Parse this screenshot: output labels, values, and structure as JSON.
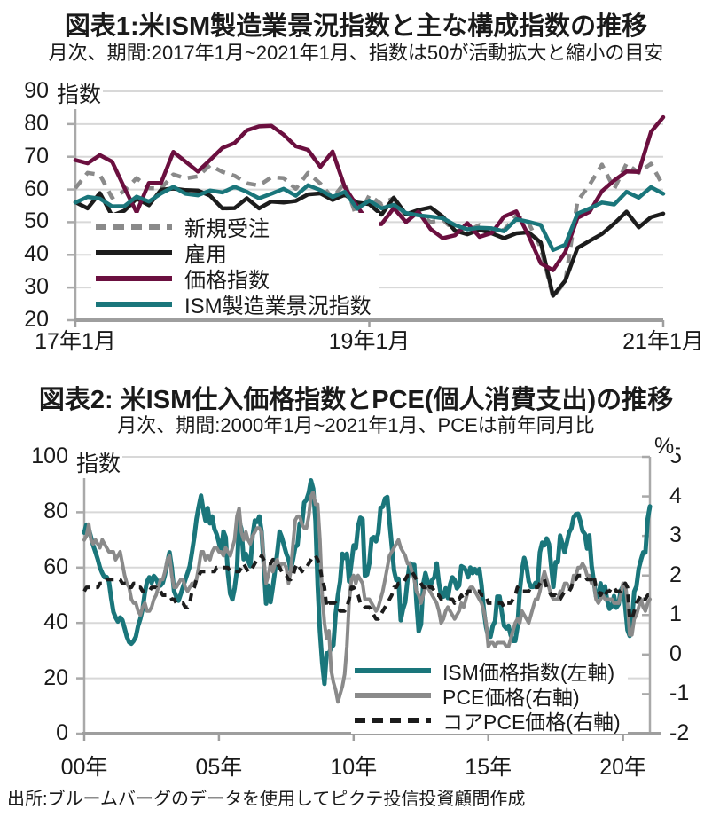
{
  "page": {
    "background": "#ffffff",
    "text_color": "#1a1a1a",
    "grid_color": "#d8d8d8",
    "axis_color": "#a9a9a9"
  },
  "source_note": "出所:ブルームバーグのデータを使用してピクテ投信投資顧問作成",
  "chart_data": [
    {
      "type": "line",
      "title": "図表1:米ISM製造業景況指数と主な構成指数の推移",
      "subtitle": "月次、期間:2017年1月~2021年1月、指数は50が活動拡大と縮小の目安",
      "ylabel": "指数",
      "ylim": [
        20,
        90
      ],
      "y_ticks": [
        90,
        80,
        70,
        60,
        50,
        40,
        30,
        20
      ],
      "x_tick_labels": [
        "17年1月",
        "19年1月",
        "21年1月"
      ],
      "x_tick_positions": [
        0,
        24,
        48
      ],
      "grid": "horizontal",
      "legend_position": "lower-left",
      "series": [
        {
          "name": "新規受注",
          "color": "#8a8a8a",
          "dash": "11 8",
          "width": 4.5,
          "values": [
            60.4,
            65.1,
            64.5,
            57.5,
            59.5,
            63.5,
            60.4,
            60.3,
            64.6,
            63.4,
            64.0,
            67.4,
            65.4,
            64.2,
            61.9,
            61.2,
            63.7,
            63.5,
            60.2,
            65.1,
            61.8,
            57.4,
            62.1,
            51.1,
            58.2,
            55.5,
            57.4,
            51.7,
            52.7,
            50.0,
            50.8,
            47.2,
            47.3,
            49.1,
            47.2,
            47.6,
            52.0,
            49.8,
            42.2,
            27.1,
            31.8,
            56.4,
            61.5,
            67.6,
            60.2,
            67.9,
            65.1,
            67.9,
            61.1
          ]
        },
        {
          "name": "雇用",
          "color": "#1c1c1c",
          "dash": null,
          "width": 4.5,
          "values": [
            56.1,
            54.2,
            58.9,
            52.0,
            53.5,
            57.2,
            55.2,
            59.9,
            60.3,
            59.8,
            59.7,
            58.1,
            54.2,
            54.3,
            57.3,
            54.2,
            56.3,
            56.0,
            56.5,
            58.5,
            58.8,
            56.8,
            58.4,
            56.0,
            55.5,
            52.3,
            57.5,
            52.4,
            53.7,
            54.5,
            51.7,
            47.4,
            46.3,
            47.7,
            46.6,
            45.1,
            46.6,
            46.9,
            43.8,
            27.5,
            32.1,
            42.1,
            44.3,
            46.4,
            49.6,
            53.2,
            48.4,
            51.5,
            52.6
          ]
        },
        {
          "name": "価格指数",
          "color": "#6b0f3f",
          "dash": null,
          "width": 4.5,
          "values": [
            69.0,
            68.0,
            70.5,
            68.5,
            60.5,
            53.0,
            62.0,
            62.0,
            71.5,
            68.5,
            65.5,
            69.0,
            72.7,
            74.2,
            78.1,
            79.3,
            79.5,
            76.8,
            73.2,
            72.1,
            66.9,
            71.6,
            60.7,
            54.9,
            49.6,
            49.4,
            54.3,
            50.0,
            53.2,
            47.9,
            45.1,
            46.0,
            49.7,
            45.5,
            46.7,
            51.7,
            53.3,
            45.9,
            37.4,
            35.3,
            40.8,
            51.3,
            53.2,
            59.5,
            62.8,
            65.5,
            65.4,
            77.6,
            82.1
          ]
        },
        {
          "name": "ISM製造業景況指数",
          "color": "#1a767b",
          "dash": null,
          "width": 4.5,
          "values": [
            56.0,
            57.7,
            57.2,
            54.8,
            54.9,
            57.8,
            56.3,
            58.8,
            60.8,
            58.7,
            58.2,
            59.7,
            59.1,
            60.8,
            59.3,
            57.3,
            58.7,
            60.2,
            58.1,
            61.3,
            59.8,
            57.7,
            59.3,
            54.1,
            56.6,
            54.2,
            55.3,
            52.8,
            52.1,
            51.7,
            51.2,
            49.1,
            47.8,
            48.3,
            48.1,
            47.2,
            50.9,
            50.1,
            49.1,
            41.5,
            43.1,
            52.6,
            54.2,
            56.0,
            55.4,
            59.3,
            57.5,
            60.7,
            58.7
          ]
        }
      ]
    },
    {
      "type": "line",
      "title": "図表2: 米ISM仕入価格指数とPCE(個人消費支出)の推移",
      "subtitle": "月次、期間:2000年1月~2021年1月、PCEは前年同月比",
      "ylabel_left": "指数",
      "ylabel_right": "%",
      "ylim_left": [
        0,
        100
      ],
      "ylim_right": [
        -2,
        5
      ],
      "y_ticks_left": [
        100,
        80,
        60,
        40,
        20,
        0
      ],
      "y_ticks_right": [
        5,
        4,
        3,
        2,
        1,
        0,
        -1,
        -2
      ],
      "x_tick_labels": [
        "00年",
        "05年",
        "10年",
        "15年",
        "20年"
      ],
      "x_tick_positions": [
        0,
        60,
        120,
        180,
        240
      ],
      "grid": "horizontal",
      "legend_position": "lower-right",
      "series": [
        {
          "name": "ISM価格指数(左軸)",
          "axis": "left",
          "color": "#1a767b",
          "dash": null,
          "width": 5,
          "zorder": 3,
          "values": [
            72.6,
            75.5,
            74.0,
            71.0,
            68.0,
            65.5,
            63.0,
            60.0,
            58.0,
            56.5,
            56.6,
            55.0,
            49.0,
            44.0,
            42.0,
            40.5,
            42.0,
            41.0,
            38.0,
            35.0,
            33.0,
            32.5,
            33.5,
            35.0,
            39.0,
            41.5,
            45.0,
            51.0,
            55.0,
            56.5,
            54.5,
            57.0,
            56.0,
            54.0,
            53.5,
            54.5,
            57.5,
            62.0,
            65.5,
            60.0,
            51.5,
            49.5,
            48.0,
            50.5,
            53.0,
            55.5,
            58.0,
            60.5,
            65.5,
            71.0,
            77.5,
            82.0,
            86.0,
            81.0,
            77.0,
            81.5,
            76.0,
            78.5,
            74.0,
            72.0,
            69.0,
            65.5,
            73.0,
            71.0,
            58.0,
            50.5,
            48.5,
            52.5,
            59.0,
            77.0,
            74.0,
            63.0,
            65.0,
            62.5,
            60.5,
            71.5,
            77.0,
            76.5,
            78.5,
            73.0,
            61.0,
            47.0,
            53.5,
            47.5,
            53.0,
            59.0,
            65.5,
            73.0,
            71.0,
            68.0,
            65.0,
            63.0,
            59.0,
            63.0,
            67.5,
            68.0,
            76.0,
            75.5,
            83.5,
            84.5,
            87.0,
            91.5,
            88.5,
            77.0,
            53.5,
            37.0,
            25.5,
            18.0,
            29.0,
            29.0,
            31.0,
            32.0,
            43.5,
            50.0,
            55.0,
            65.0,
            63.5,
            65.0,
            55.0,
            61.5,
            68.0,
            67.0,
            75.0,
            78.0,
            77.5,
            57.0,
            57.5,
            61.5,
            70.5,
            71.0,
            69.5,
            72.5,
            81.5,
            82.0,
            85.0,
            85.5,
            76.5,
            68.0,
            59.0,
            55.5,
            56.0,
            41.0,
            45.0,
            47.5,
            55.5,
            61.5,
            61.0,
            61.0,
            47.5,
            37.0,
            39.5,
            54.0,
            58.0,
            55.0,
            52.5,
            55.5,
            56.5,
            61.5,
            54.5,
            50.0,
            49.5,
            52.5,
            49.0,
            54.0,
            56.5,
            55.5,
            52.5,
            53.5,
            60.5,
            60.0,
            59.0,
            56.5,
            60.0,
            58.0,
            59.5,
            58.0,
            59.5,
            53.5,
            44.5,
            38.5,
            35.0,
            35.0,
            39.0,
            40.5,
            49.5,
            49.5,
            44.0,
            39.0,
            38.0,
            39.0,
            35.5,
            33.5,
            33.5,
            38.5,
            51.5,
            59.0,
            63.5,
            60.5,
            55.0,
            53.0,
            53.0,
            54.5,
            54.5,
            65.5,
            69.0,
            68.0,
            70.5,
            68.5,
            60.5,
            53.0,
            62.0,
            62.0,
            71.5,
            68.5,
            65.5,
            69.0,
            72.7,
            74.2,
            78.1,
            79.3,
            79.5,
            76.8,
            73.2,
            72.1,
            66.9,
            71.6,
            60.7,
            54.9,
            49.6,
            49.4,
            54.3,
            50.0,
            53.2,
            47.9,
            45.1,
            46.0,
            49.7,
            45.5,
            46.7,
            51.7,
            53.3,
            45.9,
            37.4,
            35.3,
            40.8,
            51.3,
            53.2,
            59.5,
            62.8,
            65.5,
            65.4,
            77.6,
            82.1
          ]
        },
        {
          "name": "PCE価格(右軸)",
          "axis": "right",
          "color": "#8a8a8a",
          "dash": null,
          "width": 4,
          "zorder": 1,
          "values": [
            2.9,
            3.0,
            3.3,
            2.9,
            2.8,
            2.9,
            2.8,
            2.7,
            2.9,
            2.8,
            2.7,
            2.6,
            2.6,
            2.6,
            2.4,
            2.5,
            2.6,
            2.3,
            2.0,
            1.8,
            1.7,
            1.4,
            1.3,
            1.3,
            1.1,
            1.0,
            1.2,
            1.3,
            1.1,
            1.1,
            1.2,
            1.4,
            1.5,
            1.7,
            1.9,
            1.9,
            2.1,
            2.4,
            2.5,
            2.0,
            1.7,
            1.7,
            1.8,
            1.9,
            1.9,
            1.7,
            1.6,
            1.7,
            1.8,
            1.8,
            1.9,
            2.2,
            2.6,
            2.6,
            2.4,
            2.5,
            2.4,
            2.6,
            2.7,
            2.7,
            2.6,
            2.6,
            2.5,
            2.7,
            2.6,
            2.5,
            2.7,
            2.9,
            3.5,
            3.7,
            3.1,
            2.9,
            3.1,
            2.9,
            2.8,
            3.0,
            3.1,
            3.2,
            3.2,
            3.1,
            2.4,
            1.8,
            2.0,
            2.3,
            2.1,
            2.3,
            2.4,
            2.2,
            2.3,
            2.3,
            2.2,
            1.8,
            2.1,
            2.8,
            3.4,
            3.5,
            3.5,
            3.3,
            3.2,
            3.2,
            3.5,
            4.0,
            4.1,
            3.8,
            3.8,
            2.9,
            1.5,
            0.8,
            0.4,
            0.6,
            -0.4,
            -0.7,
            -0.9,
            -1.2,
            -1.0,
            -0.8,
            -0.5,
            0.2,
            1.3,
            1.9,
            2.0,
            1.8,
            2.0,
            1.9,
            1.8,
            1.4,
            1.4,
            1.4,
            1.3,
            1.2,
            1.1,
            1.2,
            1.4,
            1.6,
            1.9,
            2.2,
            2.5,
            2.6,
            2.7,
            2.8,
            2.9,
            2.7,
            2.6,
            2.5,
            2.3,
            2.3,
            2.1,
            1.9,
            1.6,
            1.5,
            1.3,
            1.5,
            1.7,
            1.7,
            1.6,
            1.5,
            1.4,
            1.3,
            1.1,
            0.8,
            0.9,
            1.1,
            1.2,
            1.1,
            1.0,
            0.9,
            1.0,
            1.1,
            1.3,
            1.2,
            1.4,
            1.6,
            1.7,
            1.7,
            1.6,
            1.5,
            1.4,
            1.3,
            1.1,
            0.8,
            0.2,
            0.3,
            0.3,
            0.2,
            0.3,
            0.3,
            0.3,
            0.3,
            0.2,
            0.2,
            0.4,
            0.6,
            0.8,
            0.9,
            0.8,
            1.1,
            1.0,
            0.9,
            0.8,
            1.0,
            1.2,
            1.4,
            1.4,
            1.6,
            1.9,
            2.1,
            1.9,
            1.7,
            1.5,
            1.4,
            1.4,
            1.4,
            1.6,
            1.6,
            1.8,
            1.8,
            1.7,
            1.7,
            2.0,
            2.0,
            2.2,
            2.2,
            2.3,
            2.2,
            2.0,
            2.0,
            1.8,
            1.8,
            1.4,
            1.3,
            1.4,
            1.5,
            1.4,
            1.4,
            1.4,
            1.4,
            1.3,
            1.3,
            1.3,
            1.5,
            1.8,
            1.8,
            1.3,
            0.5,
            0.5,
            0.9,
            1.0,
            1.2,
            1.4,
            1.2,
            1.1,
            1.3,
            1.4
          ]
        },
        {
          "name": "コアPCE価格(右軸)",
          "axis": "right",
          "color": "#1c1c1c",
          "dash": "9 7",
          "width": 4,
          "zorder": 2,
          "values": [
            1.6,
            1.7,
            1.7,
            1.7,
            1.7,
            1.7,
            1.7,
            1.8,
            1.8,
            1.8,
            1.9,
            1.9,
            1.9,
            1.9,
            1.9,
            1.9,
            1.9,
            1.8,
            1.8,
            1.8,
            1.7,
            1.7,
            1.8,
            1.8,
            1.7,
            1.7,
            1.6,
            1.6,
            1.6,
            1.6,
            1.7,
            1.7,
            1.7,
            1.6,
            1.6,
            1.5,
            1.5,
            1.5,
            1.5,
            1.4,
            1.4,
            1.3,
            1.3,
            1.3,
            1.3,
            1.2,
            1.2,
            1.3,
            1.6,
            1.7,
            1.9,
            2.0,
            2.1,
            2.1,
            2.1,
            2.1,
            2.1,
            2.1,
            2.1,
            2.2,
            2.2,
            2.2,
            2.2,
            2.2,
            2.2,
            2.1,
            2.1,
            2.1,
            2.1,
            2.1,
            2.2,
            2.3,
            2.2,
            2.1,
            2.1,
            2.2,
            2.3,
            2.4,
            2.4,
            2.5,
            2.4,
            2.3,
            2.3,
            2.3,
            2.4,
            2.4,
            2.3,
            2.2,
            2.1,
            2.0,
            2.0,
            1.9,
            1.9,
            2.0,
            2.2,
            2.3,
            2.2,
            2.1,
            2.2,
            2.2,
            2.3,
            2.4,
            2.5,
            2.5,
            2.4,
            2.2,
            1.9,
            1.7,
            1.2,
            1.3,
            1.3,
            1.3,
            1.3,
            1.2,
            1.1,
            1.1,
            1.1,
            1.2,
            1.4,
            1.7,
            1.7,
            1.6,
            1.5,
            1.3,
            1.3,
            1.2,
            1.2,
            1.2,
            1.1,
            1.0,
            0.9,
            0.9,
            1.0,
            1.1,
            1.2,
            1.3,
            1.4,
            1.5,
            1.7,
            1.7,
            1.8,
            1.8,
            1.8,
            1.9,
            2.0,
            2.0,
            2.1,
            2.0,
            1.9,
            1.9,
            1.8,
            1.7,
            1.7,
            1.8,
            1.7,
            1.7,
            1.6,
            1.5,
            1.5,
            1.4,
            1.4,
            1.4,
            1.4,
            1.4,
            1.4,
            1.3,
            1.4,
            1.4,
            1.5,
            1.4,
            1.5,
            1.6,
            1.6,
            1.6,
            1.6,
            1.6,
            1.6,
            1.5,
            1.5,
            1.5,
            1.3,
            1.3,
            1.3,
            1.3,
            1.3,
            1.3,
            1.3,
            1.2,
            1.3,
            1.3,
            1.3,
            1.4,
            1.5,
            1.7,
            1.6,
            1.6,
            1.6,
            1.6,
            1.6,
            1.7,
            1.7,
            1.7,
            1.7,
            1.8,
            1.9,
            1.9,
            1.7,
            1.6,
            1.5,
            1.5,
            1.5,
            1.4,
            1.4,
            1.5,
            1.6,
            1.6,
            1.6,
            1.7,
            1.9,
            1.9,
            2.0,
            2.0,
            2.0,
            2.0,
            1.9,
            1.9,
            1.9,
            2.0,
            1.7,
            1.6,
            1.5,
            1.6,
            1.5,
            1.6,
            1.6,
            1.7,
            1.7,
            1.6,
            1.6,
            1.6,
            1.7,
            1.8,
            1.7,
            0.9,
            0.9,
            1.1,
            1.3,
            1.4,
            1.5,
            1.4,
            1.4,
            1.5,
            1.5
          ]
        }
      ]
    }
  ]
}
